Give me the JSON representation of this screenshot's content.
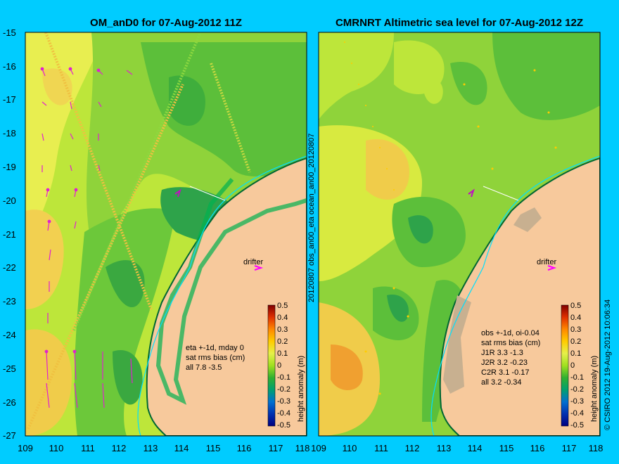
{
  "colors": {
    "background": "#00ccff",
    "land": "#f7c99c",
    "coast": "#006633",
    "drifter": "#ff00ff"
  },
  "panels": [
    {
      "title": "OM_anD0 for 07-Aug-2012 11Z",
      "x_ticks": [
        "109",
        "110",
        "111",
        "112",
        "113",
        "114",
        "115",
        "116",
        "117",
        "118"
      ],
      "y_ticks": [
        "-15",
        "-16",
        "-17",
        "-18",
        "-19",
        "-20",
        "-21",
        "-22",
        "-23",
        "-24",
        "-25",
        "-26",
        "-27"
      ],
      "stats": [
        "eta +-1d, mday 0",
        "sat rms bias (cm)",
        "all 7.8 -3.5"
      ],
      "drifter_label": "drifter",
      "colorbar_label": "height anomaly (m)",
      "colorbar_ticks": [
        "0.5",
        "0.4",
        "0.3",
        "0.2",
        "0.1",
        "0",
        "-0.1",
        "-0.2",
        "-0.3",
        "-0.4",
        "-0.5"
      ]
    },
    {
      "title": "CMRNRT Altimetric sea level  for 07-Aug-2012 12Z",
      "x_ticks": [
        "109",
        "110",
        "111",
        "112",
        "113",
        "114",
        "115",
        "116",
        "117",
        "118"
      ],
      "stats": [
        "obs +-1d, oi-0.04",
        "sat rms bias (cm)",
        "J1R   3.3 -1.3",
        "J2R   3.2 -0.23",
        "C2R   3.1 -0.17",
        "all 3.2 -0.34"
      ],
      "drifter_label": "drifter",
      "colorbar_label": "height anomaly (m)",
      "colorbar_ticks": [
        "0.5",
        "0.4",
        "0.3",
        "0.2",
        "0.1",
        "0",
        "-0.1",
        "-0.2",
        "-0.3",
        "-0.4",
        "-0.5"
      ]
    }
  ],
  "side_label": "20120807 obs_an00_eta          ocean_an00_20120807",
  "credit": "© CSIRO 2012   19-Aug-2012 10:06:34"
}
